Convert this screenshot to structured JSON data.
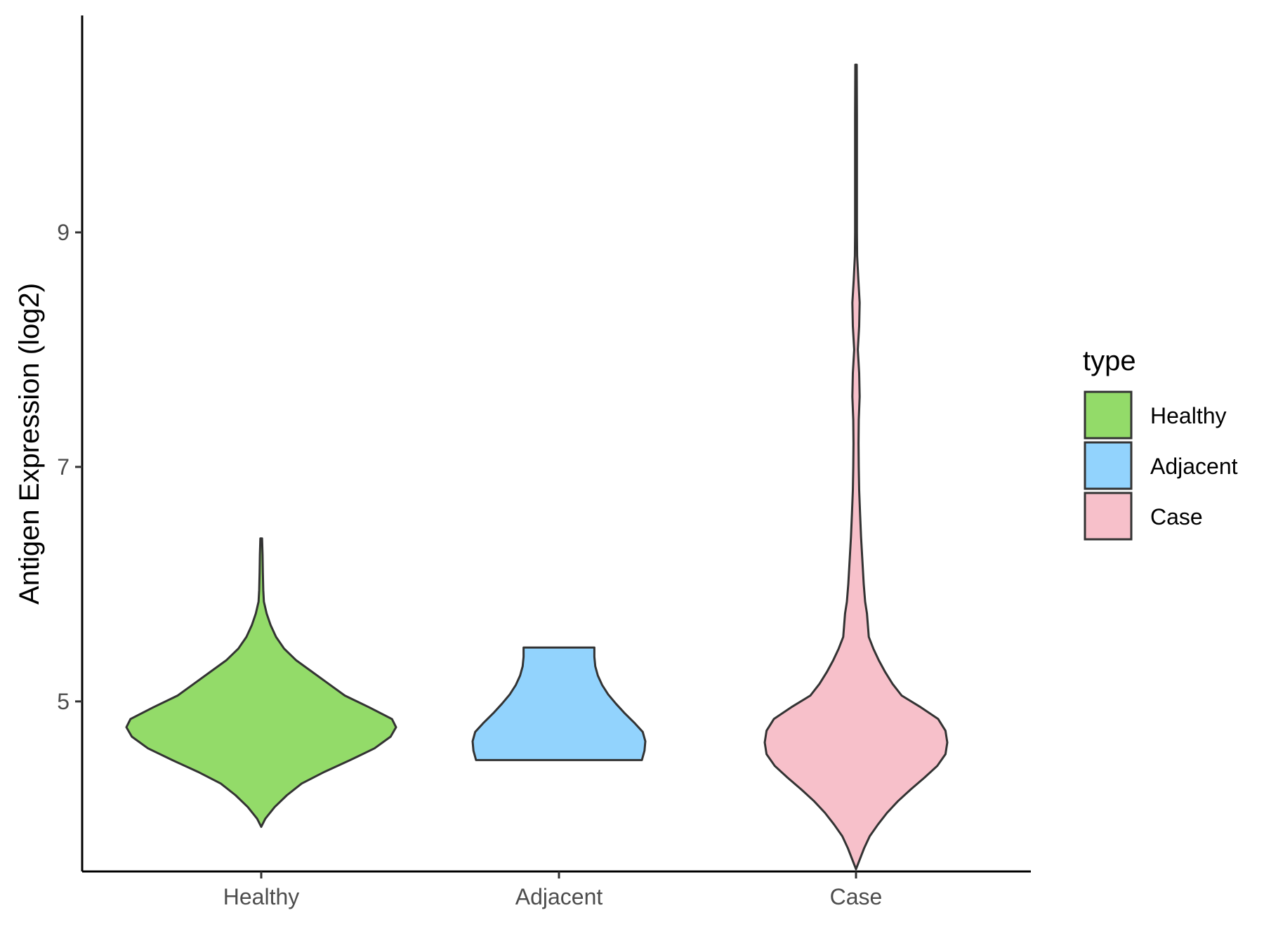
{
  "chart_data": {
    "type": "violin",
    "xlabel": "",
    "ylabel": "Antigen Expression (log2)",
    "ylim": [
      3.55,
      10.85
    ],
    "y_ticks": [
      5,
      7,
      9
    ],
    "y_tick_labels": [
      "5",
      "7",
      "9"
    ],
    "categories": [
      "Healthy",
      "Adjacent",
      "Case"
    ],
    "grid": false,
    "legend": {
      "title": "type",
      "position": "right",
      "entries": [
        {
          "label": "Healthy",
          "color": "#93db69"
        },
        {
          "label": "Adjacent",
          "color": "#92d3fd"
        },
        {
          "label": "Case",
          "color": "#f7c0ca"
        }
      ]
    },
    "series": [
      {
        "category": "Healthy",
        "color": "#93db69",
        "ymin": 3.93,
        "ymax": 6.39,
        "density": [
          [
            3.93,
            0.0
          ],
          [
            4.0,
            0.03
          ],
          [
            4.1,
            0.1
          ],
          [
            4.2,
            0.19
          ],
          [
            4.3,
            0.3
          ],
          [
            4.4,
            0.47
          ],
          [
            4.5,
            0.66
          ],
          [
            4.6,
            0.84
          ],
          [
            4.7,
            0.96
          ],
          [
            4.78,
            1.0
          ],
          [
            4.85,
            0.97
          ],
          [
            4.95,
            0.8
          ],
          [
            5.05,
            0.62
          ],
          [
            5.15,
            0.5
          ],
          [
            5.25,
            0.38
          ],
          [
            5.35,
            0.26
          ],
          [
            5.45,
            0.17
          ],
          [
            5.55,
            0.11
          ],
          [
            5.65,
            0.07
          ],
          [
            5.75,
            0.04
          ],
          [
            5.85,
            0.02
          ],
          [
            5.95,
            0.015
          ],
          [
            6.1,
            0.012
          ],
          [
            6.25,
            0.01
          ],
          [
            6.39,
            0.006
          ]
        ]
      },
      {
        "category": "Adjacent",
        "color": "#92d3fd",
        "ymin": 4.5,
        "ymax": 5.46,
        "density": [
          [
            4.5,
            0.96
          ],
          [
            4.58,
            0.99
          ],
          [
            4.66,
            1.0
          ],
          [
            4.74,
            0.97
          ],
          [
            4.82,
            0.87
          ],
          [
            4.9,
            0.76
          ],
          [
            4.98,
            0.66
          ],
          [
            5.06,
            0.57
          ],
          [
            5.14,
            0.5
          ],
          [
            5.22,
            0.45
          ],
          [
            5.3,
            0.42
          ],
          [
            5.38,
            0.41
          ],
          [
            5.46,
            0.41
          ]
        ]
      },
      {
        "category": "Case",
        "color": "#f7c0ca",
        "ymin": 3.57,
        "ymax": 10.43,
        "density": [
          [
            3.57,
            0.0
          ],
          [
            3.65,
            0.04
          ],
          [
            3.75,
            0.09
          ],
          [
            3.85,
            0.15
          ],
          [
            3.95,
            0.24
          ],
          [
            4.05,
            0.34
          ],
          [
            4.15,
            0.46
          ],
          [
            4.25,
            0.6
          ],
          [
            4.35,
            0.75
          ],
          [
            4.45,
            0.89
          ],
          [
            4.55,
            0.98
          ],
          [
            4.65,
            1.0
          ],
          [
            4.75,
            0.98
          ],
          [
            4.85,
            0.9
          ],
          [
            4.95,
            0.71
          ],
          [
            5.05,
            0.5
          ],
          [
            5.15,
            0.4
          ],
          [
            5.25,
            0.32
          ],
          [
            5.35,
            0.25
          ],
          [
            5.45,
            0.19
          ],
          [
            5.55,
            0.14
          ],
          [
            5.65,
            0.13
          ],
          [
            5.75,
            0.12
          ],
          [
            5.85,
            0.1
          ],
          [
            6.0,
            0.085
          ],
          [
            6.2,
            0.07
          ],
          [
            6.4,
            0.055
          ],
          [
            6.6,
            0.045
          ],
          [
            6.8,
            0.035
          ],
          [
            7.0,
            0.03
          ],
          [
            7.2,
            0.028
          ],
          [
            7.4,
            0.03
          ],
          [
            7.6,
            0.04
          ],
          [
            7.8,
            0.035
          ],
          [
            8.0,
            0.02
          ],
          [
            8.2,
            0.035
          ],
          [
            8.4,
            0.04
          ],
          [
            8.6,
            0.025
          ],
          [
            8.8,
            0.012
          ],
          [
            9.0,
            0.01
          ],
          [
            9.5,
            0.01
          ],
          [
            10.0,
            0.01
          ],
          [
            10.43,
            0.008
          ]
        ]
      }
    ]
  }
}
